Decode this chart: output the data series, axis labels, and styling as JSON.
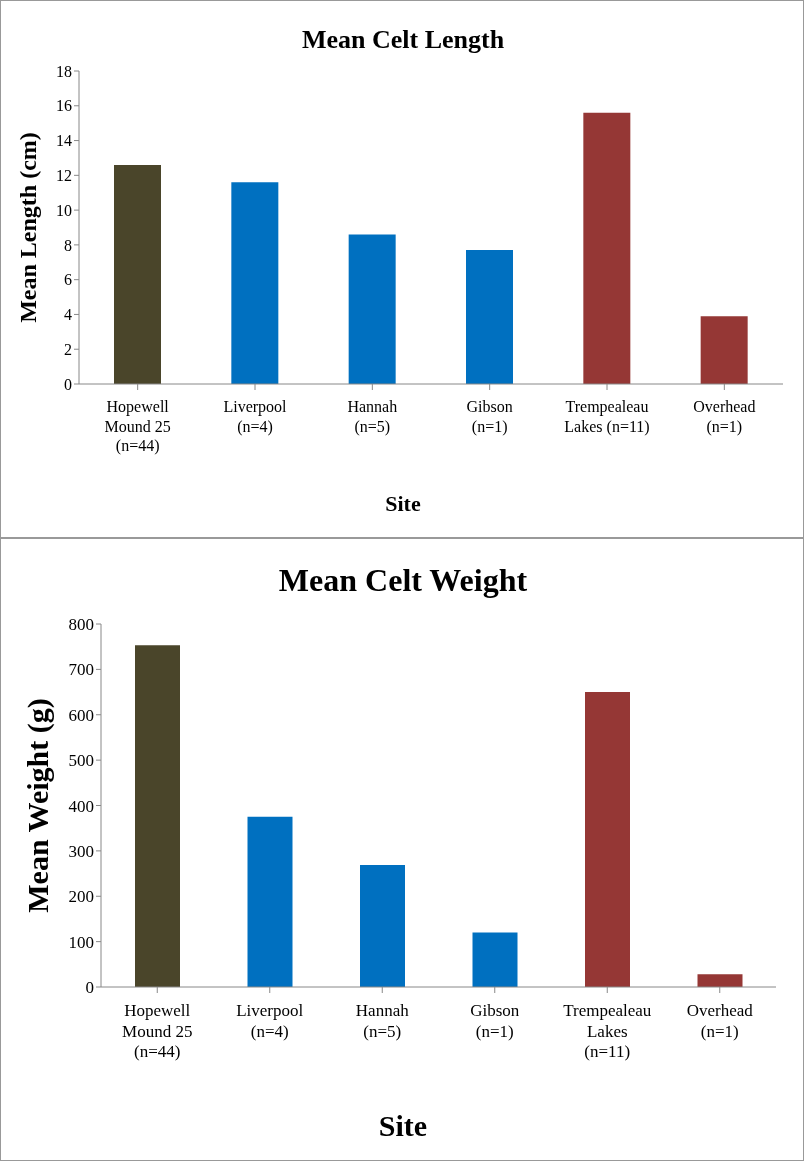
{
  "chart_data": [
    {
      "type": "bar",
      "title": "Mean Celt Length",
      "xlabel": "Site",
      "ylabel": "Mean Length (cm)",
      "categories": [
        "Hopewell\nMound 25\n(n=44)",
        "Liverpool\n(n=4)",
        "Hannah\n(n=5)",
        "Gibson\n(n=1)",
        "Trempealeau\nLakes (n=11)",
        "Overhead\n(n=1)"
      ],
      "values": [
        12.6,
        11.6,
        8.6,
        7.7,
        15.6,
        3.9
      ],
      "colors": [
        "#4a452a",
        "#0070c0",
        "#0070c0",
        "#0070c0",
        "#953735",
        "#953735"
      ],
      "ylim": [
        0,
        18
      ],
      "yticks": [
        0,
        2,
        4,
        6,
        8,
        10,
        12,
        14,
        16,
        18
      ],
      "grid": false,
      "legend": false
    },
    {
      "type": "bar",
      "title": "Mean Celt Weight",
      "xlabel": "Site",
      "ylabel": "Mean Weight (g)",
      "categories": [
        "Hopewell\nMound 25\n(n=44)",
        "Liverpool\n(n=4)",
        "Hannah\n(n=5)",
        "Gibson\n(n=1)",
        "Trempealeau\nLakes\n(n=11)",
        "Overhead\n(n=1)"
      ],
      "values": [
        753,
        375,
        269,
        120,
        650,
        28
      ],
      "colors": [
        "#4a452a",
        "#0070c0",
        "#0070c0",
        "#0070c0",
        "#953735",
        "#953735"
      ],
      "ylim": [
        0,
        800
      ],
      "yticks": [
        0,
        100,
        200,
        300,
        400,
        500,
        600,
        700,
        800
      ],
      "grid": false,
      "legend": false
    }
  ]
}
